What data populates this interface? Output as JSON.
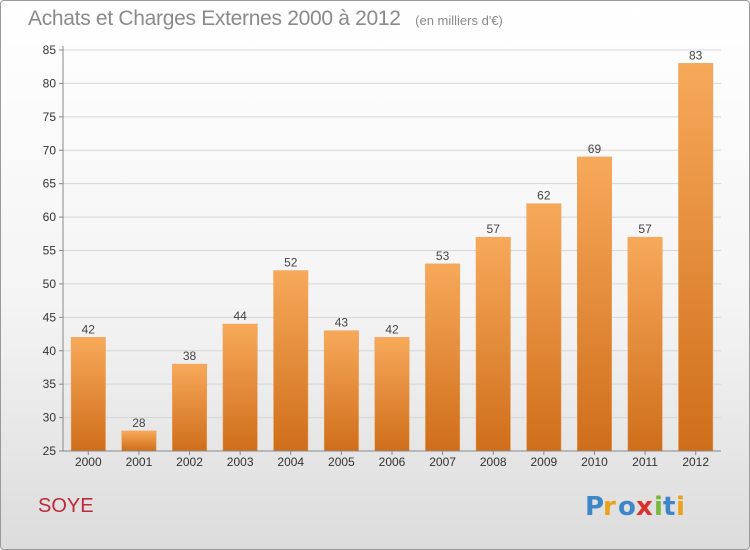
{
  "title": "Achats et Charges Externes 2000 à 2012",
  "unit": "(en milliers d'€)",
  "commune": "SOYE",
  "logo": "Proxiti",
  "colors": {
    "bar_top": "#f7a95a",
    "bar_bottom": "#cf6e1a",
    "grid": "#d6d6d6",
    "axis": "#888888",
    "commune": "#c0283a"
  },
  "chart_data": {
    "type": "bar",
    "categories": [
      "2000",
      "2001",
      "2002",
      "2003",
      "2004",
      "2005",
      "2006",
      "2007",
      "2008",
      "2009",
      "2010",
      "2011",
      "2012"
    ],
    "values": [
      42,
      28,
      38,
      44,
      52,
      43,
      42,
      53,
      57,
      62,
      69,
      57,
      83
    ],
    "ylim": [
      25,
      85
    ],
    "yticks": [
      25,
      30,
      35,
      40,
      45,
      50,
      55,
      60,
      65,
      70,
      75,
      80,
      85
    ],
    "grid": true
  }
}
